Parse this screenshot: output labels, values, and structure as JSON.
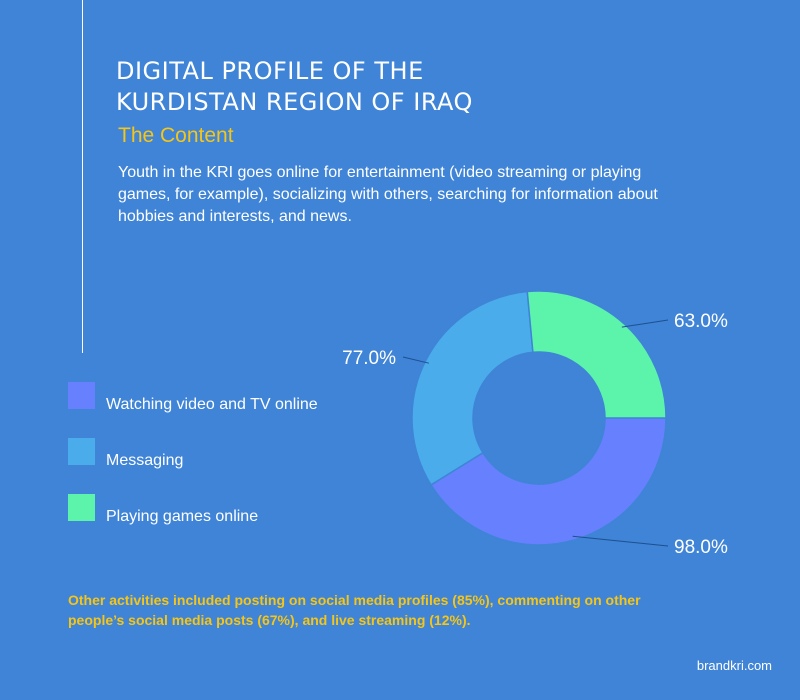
{
  "header": {
    "title_lines": [
      "DIGITAL PROFILE OF THE",
      "KURDISTAN REGION OF IRAQ"
    ],
    "subtitle": "The Content",
    "description": "Youth in the KRI goes online for entertainment (video streaming or playing games, for example), socializing with others, searching for information about hobbies and interests, and news."
  },
  "chart_data": {
    "type": "pie",
    "variant": "donut",
    "categories": [
      "Watching video and TV online",
      "Messaging",
      "Playing games online"
    ],
    "values": [
      98.0,
      77.0,
      63.0
    ],
    "value_labels": [
      "98.0%",
      "77.0%",
      "63.0%"
    ],
    "colors": [
      "#6680fe",
      "#4aaceb",
      "#5cf3ab"
    ],
    "legend_position": "left"
  },
  "footnote": "Other activities included posting on social media profiles (85%), commenting on other people’s social media posts (67%), and live streaming (12%).",
  "brand": "brandkri.com",
  "colors": {
    "background": "#3f84d6",
    "accent": "#f5c518",
    "text": "#ffffff"
  }
}
